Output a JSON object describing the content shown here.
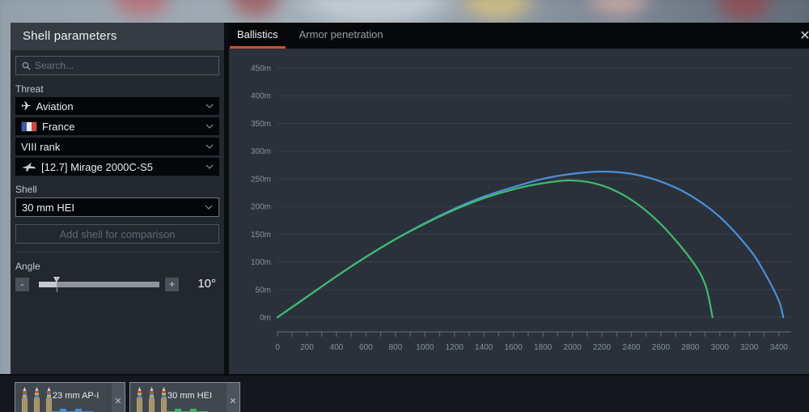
{
  "panel": {
    "title": "Shell parameters",
    "search_placeholder": "Search...",
    "threat_label": "Threat",
    "shell_label": "Shell",
    "dropdowns": {
      "threat": "Aviation",
      "nation": "France",
      "rank": "VIII rank",
      "vehicle": "[12.7] Mirage 2000C-S5",
      "shell": "30 mm HEI"
    },
    "add_button_label": "Add shell for comparison",
    "angle_label": "Angle",
    "angle_value": "10°",
    "minus_label": "-",
    "plus_label": "+"
  },
  "tabs": {
    "ballistics": "Ballistics",
    "armor_penetration": "Armor penetration",
    "close_glyph": "✕",
    "active_underline_color": "#cc512c"
  },
  "chart_data": {
    "type": "line",
    "title": "Shell trajectory: height (m) vs distance (m)",
    "xlabel": "",
    "ylabel": "",
    "xlim": [
      0,
      3440
    ],
    "ylim": [
      0,
      450
    ],
    "y_ticks": [
      0,
      50,
      100,
      150,
      200,
      250,
      300,
      350,
      400,
      450
    ],
    "y_suffix": "m",
    "x_tick_step": 100,
    "x_label_step": 200,
    "x_label_max": 3400,
    "grid": "horizontal",
    "legend": "none",
    "colors": {
      "background": "#2b313a",
      "gridline": "#39414b",
      "ruler": "#5b6672",
      "axis_text": "#8292a2"
    },
    "series": [
      {
        "name": "23 mm AP-I",
        "color": "#4a90d8",
        "points": [
          [
            0,
            0
          ],
          [
            200,
            37
          ],
          [
            400,
            74
          ],
          [
            600,
            109
          ],
          [
            800,
            141
          ],
          [
            1000,
            170
          ],
          [
            1200,
            196
          ],
          [
            1400,
            218
          ],
          [
            1600,
            235
          ],
          [
            1800,
            250
          ],
          [
            2000,
            259
          ],
          [
            2200,
            263
          ],
          [
            2400,
            259
          ],
          [
            2600,
            245
          ],
          [
            2800,
            220
          ],
          [
            3000,
            181
          ],
          [
            3200,
            123
          ],
          [
            3300,
            82
          ],
          [
            3400,
            30
          ],
          [
            3430,
            0
          ]
        ]
      },
      {
        "name": "30 mm HEI",
        "color": "#3fbb6e",
        "points": [
          [
            0,
            0
          ],
          [
            200,
            37
          ],
          [
            400,
            74
          ],
          [
            600,
            109
          ],
          [
            800,
            141
          ],
          [
            1000,
            169
          ],
          [
            1200,
            194
          ],
          [
            1400,
            215
          ],
          [
            1600,
            231
          ],
          [
            1800,
            242
          ],
          [
            2000,
            247
          ],
          [
            2200,
            238
          ],
          [
            2400,
            212
          ],
          [
            2600,
            168
          ],
          [
            2800,
            106
          ],
          [
            2900,
            60
          ],
          [
            2950,
            0
          ]
        ]
      }
    ]
  },
  "cards": [
    {
      "label": "23 mm AP-I",
      "accent_color": "#4a8fd9",
      "close_glyph": "✕"
    },
    {
      "label": "30 mm HEI",
      "accent_color": "#3cb564",
      "close_glyph": "✕"
    }
  ]
}
